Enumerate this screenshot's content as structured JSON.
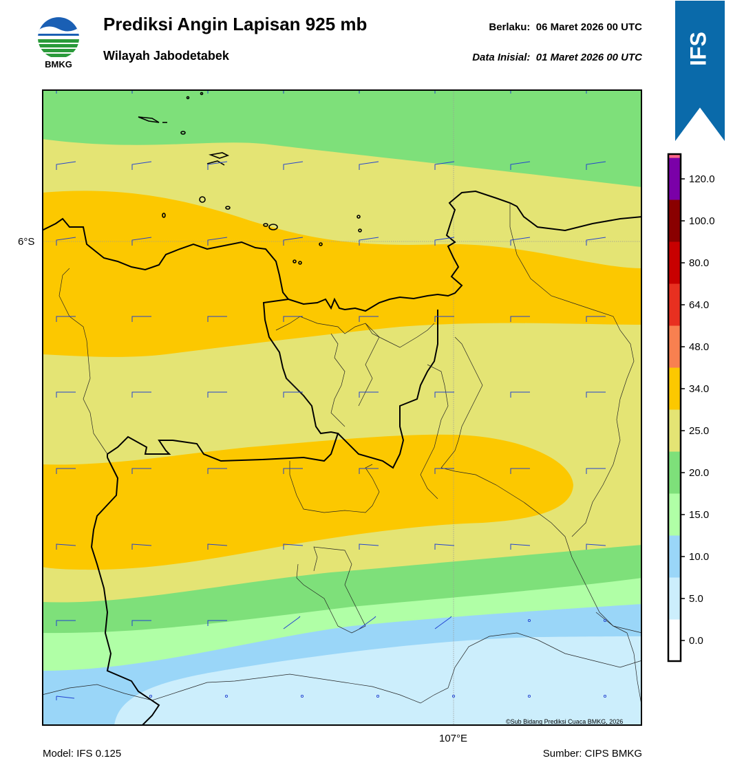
{
  "header": {
    "title": "Prediksi Angin Lapisan 925 mb",
    "subtitle": "Wilayah Jabodetabek",
    "valid_label": "Berlaku:",
    "valid_time": "06 Maret 2026 00 UTC",
    "init_label": "Data Inisial:",
    "init_time": "01 Maret 2026 00 UTC"
  },
  "logo": {
    "text": "BMKG",
    "icon": "bmkg-logo-icon"
  },
  "badge": {
    "text": "IFS",
    "color": "#0a6aaa"
  },
  "map": {
    "lat_label": "6°S",
    "lon_label": "107°E",
    "copyright": "©Sub Bidang Prediksi Cuaca BMKG, 2026"
  },
  "colorbar": {
    "ticks": [
      "0.0",
      "5.0",
      "10.0",
      "15.0",
      "20.0",
      "25.0",
      "34.0",
      "48.0",
      "64.0",
      "80.0",
      "100.0",
      "120.0"
    ],
    "colors": [
      "#ffffff",
      "#cceefc",
      "#9ad6f8",
      "#b0ffa6",
      "#7ee07a",
      "#e4e474",
      "#fcc800",
      "#f88050",
      "#e83020",
      "#c80000",
      "#8a0000",
      "#7a00a8",
      "#ff6888"
    ]
  },
  "footer": {
    "model": "Model: IFS 0.125",
    "source": "Sumber: CIPS BMKG"
  }
}
